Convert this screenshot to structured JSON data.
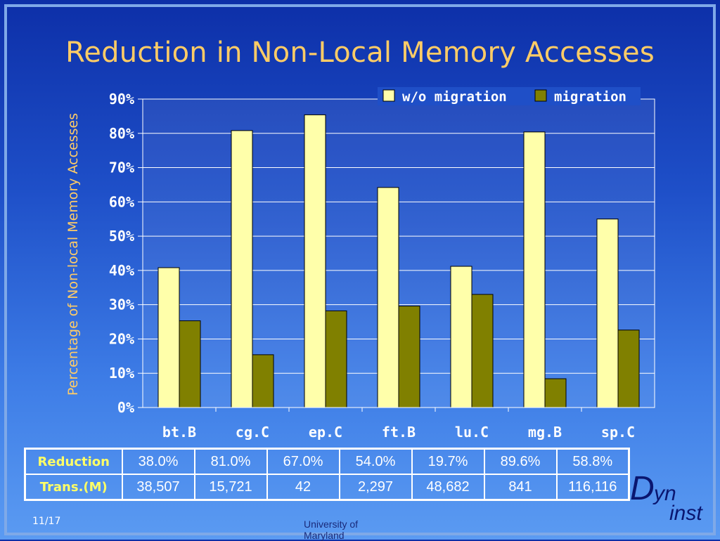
{
  "slide": {
    "title": "Reduction in Non-Local Memory Accesses",
    "slide_number": "11/17",
    "footer": "University of Maryland",
    "logo": {
      "d": "D",
      "yn": "yn",
      "inst": "inst"
    }
  },
  "chart_data": {
    "type": "bar",
    "title": "",
    "ylabel": "Percentage of Non-local Memory Accesses",
    "ylim": [
      0,
      90
    ],
    "yticks": [
      "0%",
      "10%",
      "20%",
      "30%",
      "40%",
      "50%",
      "60%",
      "70%",
      "80%",
      "90%"
    ],
    "grid": true,
    "legend_position": "top-right",
    "categories": [
      "bt.B",
      "cg.C",
      "ep.C",
      "ft.B",
      "lu.C",
      "mg.B",
      "sp.C"
    ],
    "series": [
      {
        "name": "w/o migration",
        "color": "#ffffaa",
        "values": [
          40.8,
          80.8,
          85.4,
          64.2,
          41.2,
          80.4,
          55.0
        ]
      },
      {
        "name": "migration",
        "color": "#808000",
        "values": [
          25.3,
          15.4,
          28.2,
          29.6,
          33.0,
          8.4,
          22.6
        ]
      }
    ]
  },
  "table": {
    "rows": [
      {
        "label": "Reduction",
        "values": [
          "38.0%",
          "81.0%",
          "67.0%",
          "54.0%",
          "19.7%",
          "89.6%",
          "58.8%"
        ]
      },
      {
        "label": "Trans.(M)",
        "values": [
          "38,507",
          "15,721",
          "42",
          "2,297",
          "48,682",
          "841",
          "116,116"
        ]
      }
    ]
  }
}
